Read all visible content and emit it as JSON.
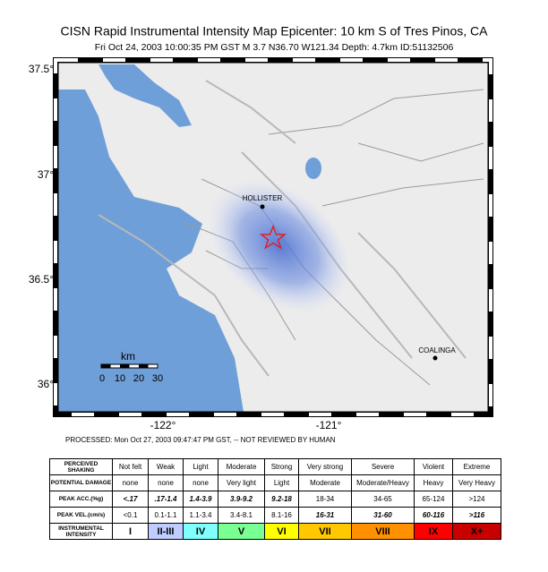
{
  "header": {
    "title": "CISN Rapid Instrumental Intensity Map Epicenter:  10 km S of Tres Pinos, CA",
    "subtitle": "Fri Oct 24, 2003 10:00:35 PM GST   M 3.7   N36.70 W121.34   Depth: 4.7km   ID:51132506"
  },
  "map": {
    "lat_ticks": [
      "37.5°",
      "37°",
      "36.5°",
      "36°"
    ],
    "lon_ticks": [
      "-122°",
      "-121°"
    ],
    "cities": [
      "HOLLISTER",
      "COALINGA"
    ],
    "scale": {
      "title": "km",
      "labels": [
        "0",
        "10",
        "20",
        "30"
      ]
    }
  },
  "footer": {
    "processed": "PROCESSED: Mon Oct 27, 2003 09:47:47 PM GST, -- NOT REVIEWED BY HUMAN"
  },
  "table": {
    "rows": [
      [
        "PERCEIVED SHAKING",
        "Not felt",
        "Weak",
        "Light",
        "Moderate",
        "Strong",
        "Very strong",
        "Severe",
        "Violent",
        "Extreme"
      ],
      [
        "POTENTIAL DAMAGE",
        "none",
        "none",
        "none",
        "Very light",
        "Light",
        "Moderate",
        "Moderate/Heavy",
        "Heavy",
        "Very Heavy"
      ],
      [
        "PEAK ACC.(%g)",
        "<.17",
        ".17-1.4",
        "1.4-3.9",
        "3.9-9.2",
        "9.2-18",
        "18-34",
        "34-65",
        "65-124",
        ">124"
      ],
      [
        "PEAK VEL.(cm/s)",
        "<0.1",
        "0.1-1.1",
        "1.1-3.4",
        "3.4-8.1",
        "8.1-16",
        "16-31",
        "31-60",
        "60-116",
        ">116"
      ],
      [
        "INSTRUMENTAL INTENSITY",
        "I",
        "II-III",
        "IV",
        "V",
        "VI",
        "VII",
        "VIII",
        "IX",
        "X+"
      ]
    ]
  }
}
